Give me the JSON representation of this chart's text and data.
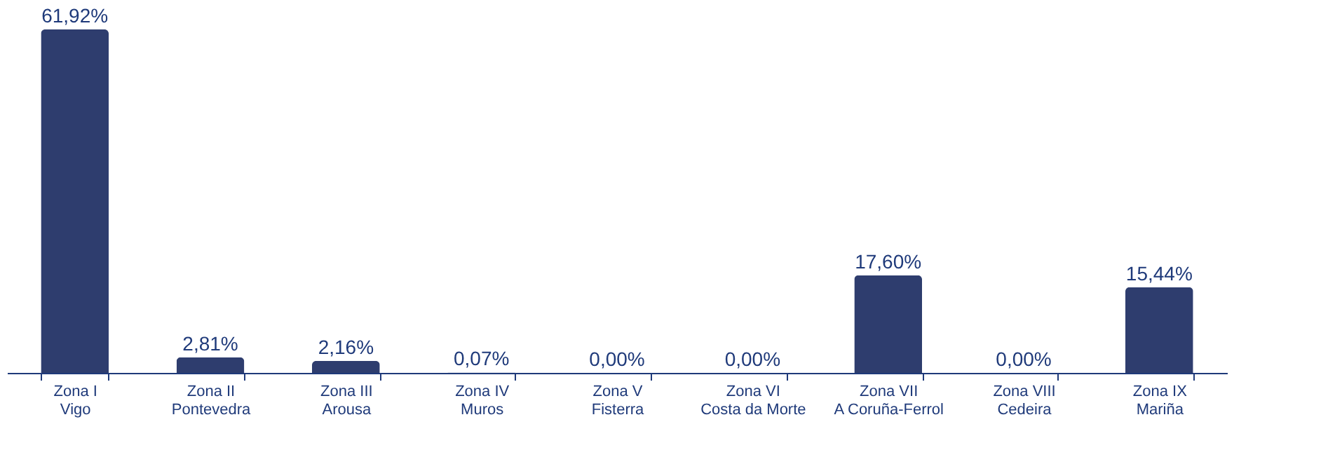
{
  "chart_data": {
    "type": "bar",
    "categories": [
      "Zona I\nVigo",
      "Zona II\nPontevedra",
      "Zona III\nArousa",
      "Zona IV\nMuros",
      "Zona V\nFisterra",
      "Zona VI\nCosta da Morte",
      "Zona VII\nA Coruña-Ferrol",
      "Zona VIII\nCedeira",
      "Zona IX\nMariña"
    ],
    "values": [
      61.92,
      2.81,
      2.16,
      0.07,
      0.0,
      0.0,
      17.6,
      0.0,
      15.44
    ],
    "value_labels": [
      "61,92%",
      "2,81%",
      "2,16%",
      "0,07%",
      "0,00%",
      "0,00%",
      "17,60%",
      "0,00%",
      "15,44%"
    ],
    "color": "#2e3d6e",
    "ylim": [
      0,
      61.92
    ],
    "tick_labels": "x",
    "grid": false
  }
}
